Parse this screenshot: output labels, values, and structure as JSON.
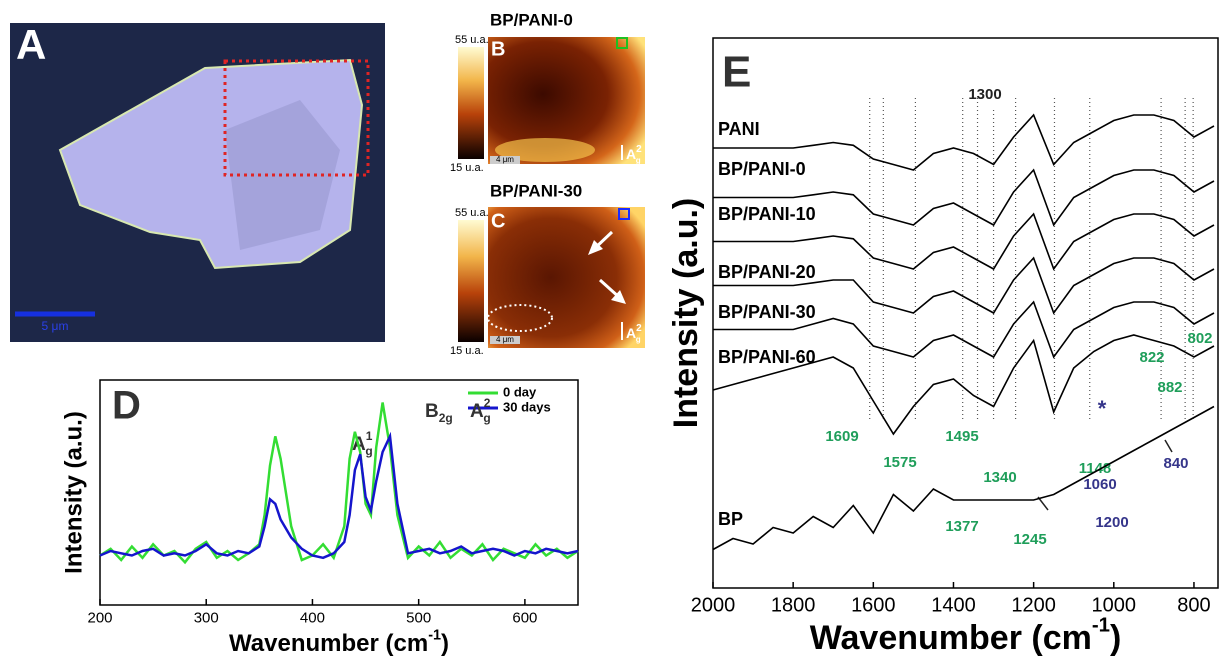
{
  "panels": {
    "a": {
      "label": "A",
      "scale_bar": "5 μm"
    },
    "b": {
      "label": "B",
      "title": "BP/PANI-0",
      "colorbar_max": "55 u.a.",
      "colorbar_min": "15 u.a.",
      "scale_bar": "4 μm",
      "mode": {
        "base": "A",
        "sup": "2",
        "sub": "g"
      }
    },
    "c": {
      "label": "C",
      "title": "BP/PANI-30",
      "colorbar_max": "55 u.a.",
      "colorbar_min": "15 u.a.",
      "scale_bar": "4 μm",
      "mode": {
        "base": "A",
        "sup": "2",
        "sub": "g"
      }
    }
  },
  "chart_data": [
    {
      "type": "line",
      "panel_label": "D",
      "xlabel": [
        "Wavenumber (cm",
        "-1",
        ")"
      ],
      "ylabel": "Intensity (a.u.)",
      "x": [
        200,
        210,
        220,
        230,
        240,
        250,
        260,
        270,
        280,
        290,
        300,
        310,
        320,
        330,
        340,
        350,
        355,
        360,
        365,
        370,
        380,
        390,
        400,
        410,
        420,
        430,
        435,
        440,
        445,
        450,
        455,
        460,
        466,
        473,
        480,
        490,
        500,
        510,
        520,
        530,
        540,
        550,
        560,
        570,
        580,
        590,
        600,
        610,
        620,
        630,
        640,
        650
      ],
      "xlim": [
        200,
        650
      ],
      "xticks": [
        200,
        300,
        400,
        500,
        600
      ],
      "ylim": [
        0,
        100
      ],
      "legend": "upper right",
      "peak_labels": [
        {
          "base": "A",
          "sup": "1",
          "sub": "g"
        },
        {
          "base": "B",
          "sub": "2g"
        },
        {
          "base": "A",
          "sup": "2",
          "sub": "g"
        }
      ],
      "series": [
        {
          "name": "0 day",
          "color": "#33dd33",
          "values": [
            22,
            25,
            20,
            26,
            21,
            27,
            22,
            24,
            19,
            25,
            28,
            21,
            24,
            20,
            23,
            27,
            40,
            62,
            75,
            65,
            35,
            20,
            22,
            27,
            21,
            35,
            65,
            77,
            68,
            45,
            40,
            70,
            90,
            70,
            40,
            21,
            26,
            22,
            28,
            21,
            25,
            22,
            27,
            20,
            25,
            23,
            21,
            27,
            22,
            25,
            21,
            24
          ]
        },
        {
          "name": "30 days",
          "color": "#1515cc",
          "values": [
            22,
            24,
            23,
            22,
            24,
            25,
            22,
            23,
            22,
            24,
            27,
            23,
            22,
            24,
            23,
            26,
            35,
            47,
            45,
            38,
            30,
            25,
            22,
            21,
            23,
            28,
            40,
            60,
            67,
            48,
            42,
            55,
            68,
            75,
            45,
            23,
            24,
            25,
            23,
            24,
            26,
            23,
            24,
            25,
            24,
            22,
            24,
            23,
            25,
            24,
            23,
            24
          ]
        }
      ]
    },
    {
      "type": "line",
      "panel_label": "E",
      "xlabel": [
        "Wavenumber (cm",
        "-1",
        ")"
      ],
      "ylabel": "Intensity (a.u.)",
      "x": [
        2000,
        1950,
        1900,
        1850,
        1800,
        1750,
        1700,
        1650,
        1600,
        1550,
        1500,
        1450,
        1400,
        1350,
        1300,
        1250,
        1200,
        1150,
        1100,
        1050,
        1000,
        950,
        900,
        850,
        800,
        750
      ],
      "xlim": [
        2000,
        740
      ],
      "xticks": [
        2000,
        1800,
        1600,
        1400,
        1200,
        1000,
        800
      ],
      "ylim": [
        0,
        100
      ],
      "annotations": [
        1300,
        1609,
        1575,
        1495,
        1340,
        1377,
        1245,
        1148,
        1200,
        1060,
        882,
        822,
        802,
        840
      ],
      "asterisk": "*",
      "series": [
        {
          "name": "PANI",
          "color": "#000000",
          "values": [
            80,
            80,
            80,
            80,
            80,
            80.5,
            81,
            80.5,
            78,
            77,
            76,
            79,
            80,
            79,
            77,
            82,
            86,
            77,
            81,
            83,
            85,
            86,
            86,
            85,
            82,
            84
          ]
        },
        {
          "name": "BP/PANI-0",
          "color": "#000000",
          "values": [
            71,
            71,
            71,
            71,
            71,
            71.5,
            72,
            71.5,
            68,
            67,
            66,
            69,
            70,
            68,
            66,
            72,
            76,
            66,
            71,
            73,
            75,
            76,
            76,
            75,
            72,
            74
          ]
        },
        {
          "name": "BP/PANI-10",
          "color": "#000000",
          "values": [
            63,
            63,
            63,
            63,
            63,
            63.5,
            64,
            63.5,
            60,
            59,
            58,
            61,
            62,
            60,
            58,
            64,
            68,
            58,
            63,
            65,
            67,
            68,
            68,
            67,
            64,
            66
          ]
        },
        {
          "name": "BP/PANI-20",
          "color": "#000000",
          "values": [
            55,
            55,
            55,
            55,
            55,
            55.5,
            56,
            56,
            52,
            51,
            50,
            53,
            54,
            52,
            50,
            56,
            60,
            50,
            55,
            57,
            59,
            60,
            60,
            59,
            56,
            58
          ]
        },
        {
          "name": "BP/PANI-30",
          "color": "#000000",
          "values": [
            47,
            47,
            47,
            47,
            47,
            48,
            49,
            48,
            44,
            43,
            42,
            45,
            46,
            44,
            42,
            48,
            52,
            42,
            47,
            49,
            51,
            52,
            52,
            51,
            48,
            50
          ]
        },
        {
          "name": "BP/PANI-60",
          "color": "#000000",
          "values": [
            36,
            37,
            38,
            39,
            40,
            41,
            42,
            40,
            34,
            28,
            33,
            37,
            38,
            35,
            33,
            40,
            45,
            32,
            40,
            43,
            45,
            46,
            45,
            44,
            42,
            44
          ]
        },
        {
          "name": "BP",
          "color": "#000000",
          "values": [
            7,
            9,
            8,
            11,
            10,
            13,
            11,
            15,
            10,
            17,
            14,
            18,
            16,
            16,
            16,
            16,
            16,
            17,
            19,
            21,
            23,
            25,
            27,
            29,
            31,
            33
          ]
        }
      ]
    }
  ]
}
